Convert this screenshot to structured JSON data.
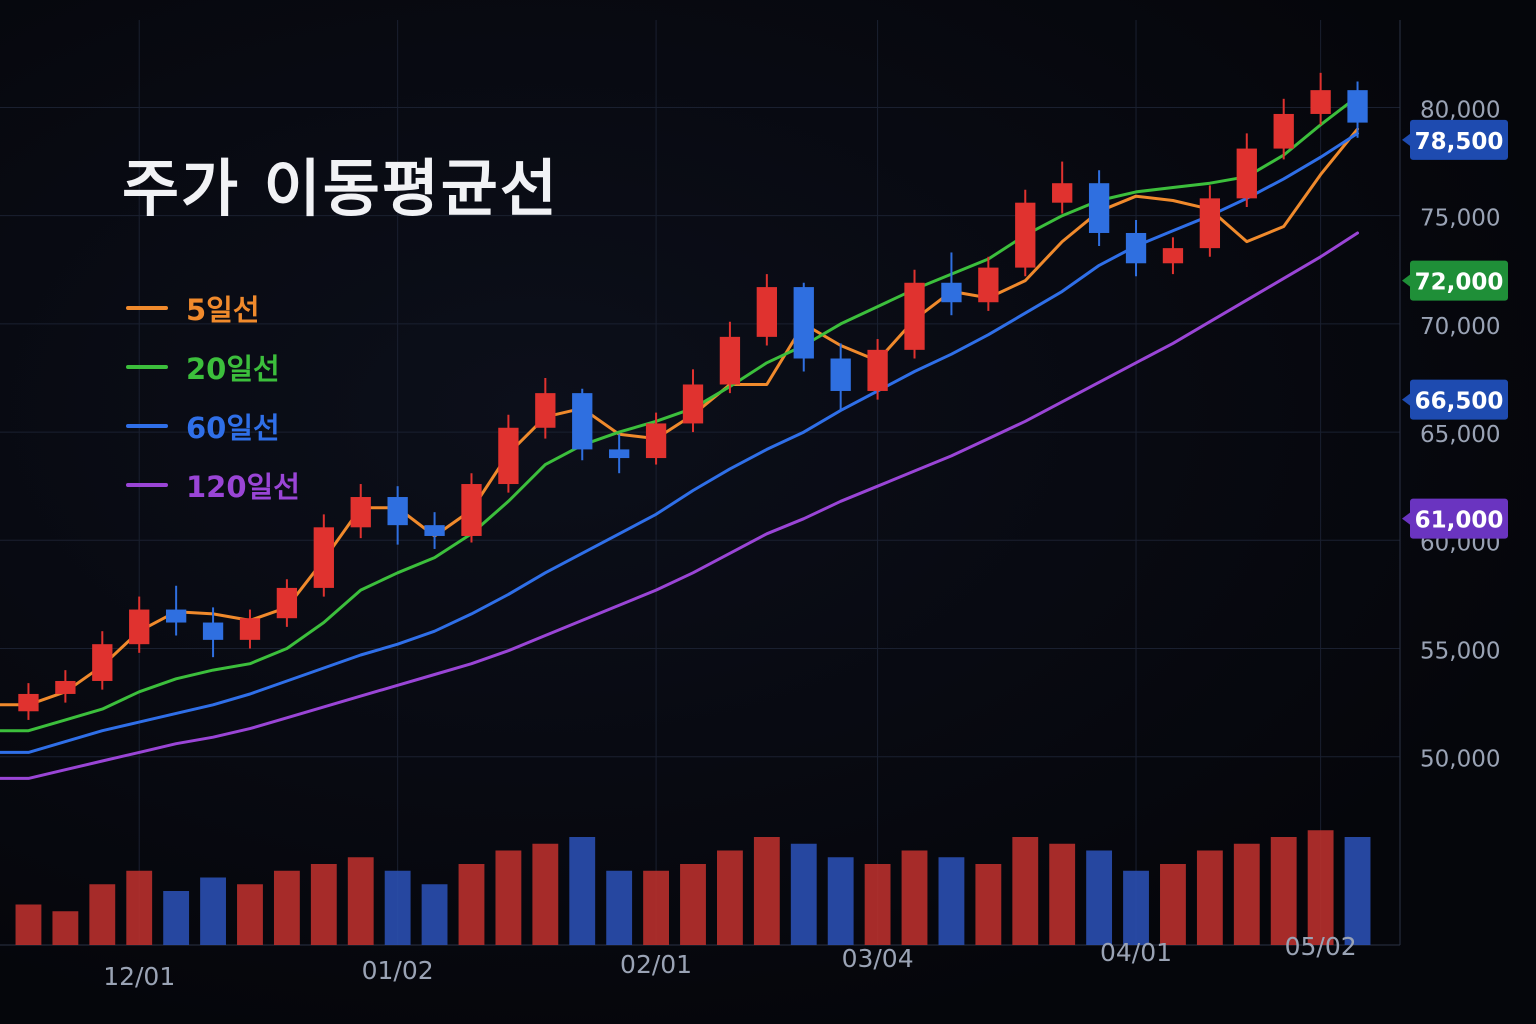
{
  "title": "주가 이동평균선",
  "colors": {
    "background": "#06070d",
    "grid": "#1a2030",
    "axis_text": "#9aa3b5",
    "candle_up": "#e0322f",
    "candle_down": "#2f6fe0",
    "volume_up": "#b8302c",
    "volume_down": "#2a4fb0"
  },
  "chart_data": {
    "type": "candlestick",
    "title": "주가 이동평균선",
    "x_ticks": [
      "12/01",
      "01/02",
      "02/01",
      "03/04",
      "04/01",
      "05/02"
    ],
    "y_ticks": [
      50000,
      55000,
      60000,
      65000,
      70000,
      75000,
      80000
    ],
    "y_tick_labels": [
      "50,000",
      "55,000",
      "60,000",
      "65,000",
      "70,000",
      "75,000",
      "80,000"
    ],
    "ylim": [
      48000,
      81500
    ],
    "grid": true,
    "legend_position": "top-left",
    "series": [
      {
        "name": "5일선",
        "color": "#f08a2c",
        "values": [
          52400,
          53000,
          54200,
          55800,
          56700,
          56600,
          56300,
          56900,
          59100,
          61500,
          61500,
          60200,
          61400,
          64000,
          65700,
          66100,
          64900,
          64700,
          65800,
          67200,
          67200,
          70000,
          69000,
          68300,
          70200,
          71500,
          71200,
          72000,
          73800,
          75200,
          75900,
          75700,
          75300,
          73800,
          74500,
          76900,
          79000
        ]
      },
      {
        "name": "20일선",
        "color": "#3cbf3c",
        "values": [
          51200,
          51700,
          52200,
          53000,
          53600,
          54000,
          54300,
          55000,
          56200,
          57700,
          58500,
          59200,
          60300,
          61800,
          63500,
          64400,
          65000,
          65500,
          66100,
          67100,
          68200,
          69000,
          70000,
          70800,
          71600,
          72300,
          73000,
          74100,
          75000,
          75700,
          76100,
          76300,
          76500,
          76800,
          77800,
          79200,
          80500
        ]
      },
      {
        "name": "60일선",
        "color": "#2f6fe8",
        "values": [
          50200,
          50700,
          51200,
          51600,
          52000,
          52400,
          52900,
          53500,
          54100,
          54700,
          55200,
          55800,
          56600,
          57500,
          58500,
          59400,
          60300,
          61200,
          62300,
          63300,
          64200,
          65000,
          66000,
          66900,
          67800,
          68600,
          69500,
          70500,
          71500,
          72700,
          73600,
          74300,
          75000,
          75800,
          76700,
          77700,
          78800
        ]
      },
      {
        "name": "120일선",
        "color": "#9a45d6",
        "values": [
          49000,
          49400,
          49800,
          50200,
          50600,
          50900,
          51300,
          51800,
          52300,
          52800,
          53300,
          53800,
          54300,
          54900,
          55600,
          56300,
          57000,
          57700,
          58500,
          59400,
          60300,
          61000,
          61800,
          62500,
          63200,
          63900,
          64700,
          65500,
          66400,
          67300,
          68200,
          69100,
          70100,
          71100,
          72100,
          73100,
          74200
        ]
      }
    ],
    "price_tags": [
      {
        "value": "78,500",
        "color": "#1e4bb0"
      },
      {
        "value": "72,000",
        "color": "#1f8f38"
      },
      {
        "value": "66,500",
        "color": "#1e4bb0"
      },
      {
        "value": "61,000",
        "color": "#6a34c0"
      }
    ],
    "price_tag_levels": [
      78500,
      72000,
      66500,
      61000
    ],
    "candles": [
      {
        "o": 52100,
        "c": 52900,
        "h": 53400,
        "l": 51700,
        "v": 0.3
      },
      {
        "o": 52900,
        "c": 53500,
        "h": 54000,
        "l": 52500,
        "v": 0.25
      },
      {
        "o": 53500,
        "c": 55200,
        "h": 55800,
        "l": 53100,
        "v": 0.45
      },
      {
        "o": 55200,
        "c": 56800,
        "h": 57400,
        "l": 54800,
        "v": 0.55
      },
      {
        "o": 56800,
        "c": 56200,
        "h": 57900,
        "l": 55600,
        "v": 0.4
      },
      {
        "o": 56200,
        "c": 55400,
        "h": 56900,
        "l": 54600,
        "v": 0.5
      },
      {
        "o": 55400,
        "c": 56400,
        "h": 56800,
        "l": 55000,
        "v": 0.45
      },
      {
        "o": 56400,
        "c": 57800,
        "h": 58200,
        "l": 56000,
        "v": 0.55
      },
      {
        "o": 57800,
        "c": 60600,
        "h": 61200,
        "l": 57400,
        "v": 0.6
      },
      {
        "o": 60600,
        "c": 62000,
        "h": 62600,
        "l": 60100,
        "v": 0.65
      },
      {
        "o": 62000,
        "c": 60700,
        "h": 62500,
        "l": 59800,
        "v": 0.55
      },
      {
        "o": 60700,
        "c": 60200,
        "h": 61300,
        "l": 59600,
        "v": 0.45
      },
      {
        "o": 60200,
        "c": 62600,
        "h": 63100,
        "l": 59900,
        "v": 0.6
      },
      {
        "o": 62600,
        "c": 65200,
        "h": 65800,
        "l": 62200,
        "v": 0.7
      },
      {
        "o": 65200,
        "c": 66800,
        "h": 67500,
        "l": 64700,
        "v": 0.75
      },
      {
        "o": 66800,
        "c": 64200,
        "h": 67000,
        "l": 63700,
        "v": 0.8
      },
      {
        "o": 64200,
        "c": 63800,
        "h": 64900,
        "l": 63100,
        "v": 0.55
      },
      {
        "o": 63800,
        "c": 65400,
        "h": 65900,
        "l": 63500,
        "v": 0.55
      },
      {
        "o": 65400,
        "c": 67200,
        "h": 67900,
        "l": 65000,
        "v": 0.6
      },
      {
        "o": 67200,
        "c": 69400,
        "h": 70100,
        "l": 66800,
        "v": 0.7
      },
      {
        "o": 69400,
        "c": 71700,
        "h": 72300,
        "l": 69000,
        "v": 0.8
      },
      {
        "o": 71700,
        "c": 68400,
        "h": 71900,
        "l": 67800,
        "v": 0.75
      },
      {
        "o": 68400,
        "c": 66900,
        "h": 69100,
        "l": 66000,
        "v": 0.65
      },
      {
        "o": 66900,
        "c": 68800,
        "h": 69300,
        "l": 66500,
        "v": 0.6
      },
      {
        "o": 68800,
        "c": 71900,
        "h": 72500,
        "l": 68400,
        "v": 0.7
      },
      {
        "o": 71900,
        "c": 71000,
        "h": 73300,
        "l": 70400,
        "v": 0.65
      },
      {
        "o": 71000,
        "c": 72600,
        "h": 73100,
        "l": 70600,
        "v": 0.6
      },
      {
        "o": 72600,
        "c": 75600,
        "h": 76200,
        "l": 72200,
        "v": 0.8
      },
      {
        "o": 75600,
        "c": 76500,
        "h": 77500,
        "l": 75100,
        "v": 0.75
      },
      {
        "o": 76500,
        "c": 74200,
        "h": 77100,
        "l": 73600,
        "v": 0.7
      },
      {
        "o": 74200,
        "c": 72800,
        "h": 74800,
        "l": 72200,
        "v": 0.55
      },
      {
        "o": 72800,
        "c": 73500,
        "h": 74000,
        "l": 72300,
        "v": 0.6
      },
      {
        "o": 73500,
        "c": 75800,
        "h": 76400,
        "l": 73100,
        "v": 0.7
      },
      {
        "o": 75800,
        "c": 78100,
        "h": 78800,
        "l": 75400,
        "v": 0.75
      },
      {
        "o": 78100,
        "c": 79700,
        "h": 80400,
        "l": 77600,
        "v": 0.8
      },
      {
        "o": 79700,
        "c": 80800,
        "h": 81600,
        "l": 79200,
        "v": 0.85
      },
      {
        "o": 80800,
        "c": 79300,
        "h": 81200,
        "l": 78600,
        "v": 0.8
      }
    ]
  }
}
